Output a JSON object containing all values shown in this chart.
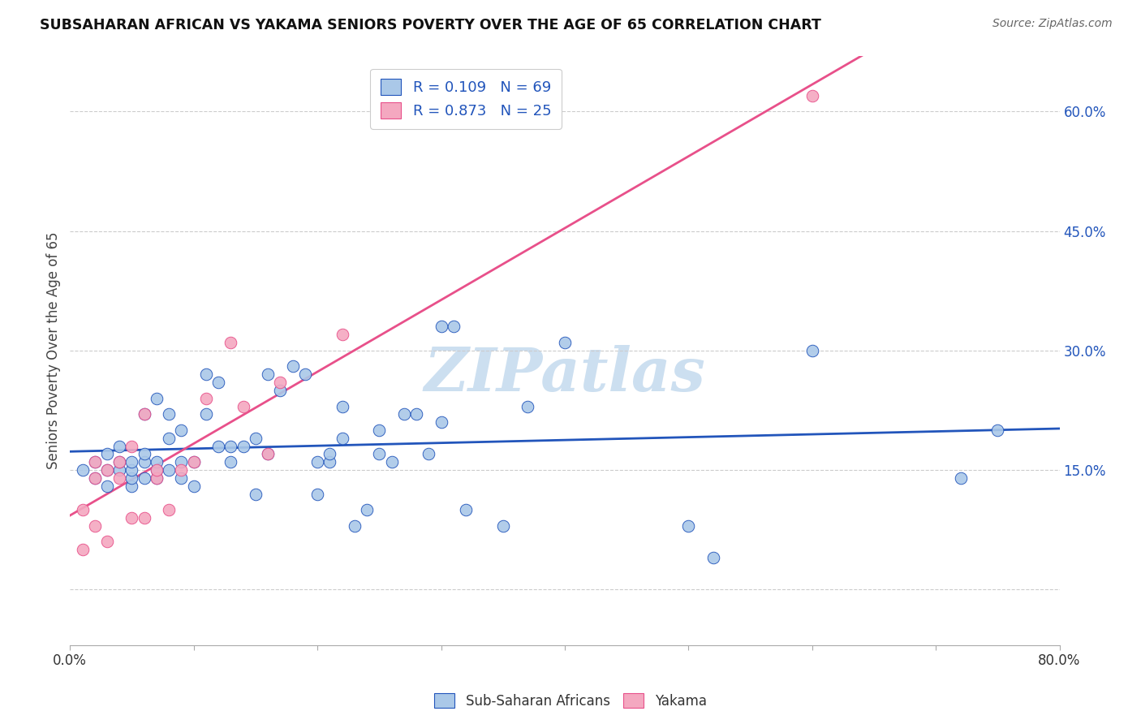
{
  "title": "SUBSAHARAN AFRICAN VS YAKAMA SENIORS POVERTY OVER THE AGE OF 65 CORRELATION CHART",
  "source": "Source: ZipAtlas.com",
  "ylabel": "Seniors Poverty Over the Age of 65",
  "xlim": [
    0.0,
    0.8
  ],
  "ylim": [
    -0.07,
    0.67
  ],
  "ytick_values": [
    0.0,
    0.15,
    0.3,
    0.45,
    0.6
  ],
  "ytick_labels": [
    "",
    "15.0%",
    "30.0%",
    "45.0%",
    "60.0%"
  ],
  "xtick_values": [
    0.0,
    0.1,
    0.2,
    0.3,
    0.4,
    0.5,
    0.6,
    0.7,
    0.8
  ],
  "title_color": "#111111",
  "source_color": "#666666",
  "grid_color": "#cccccc",
  "blue_scatter_color": "#aac8e8",
  "pink_scatter_color": "#f4a8c0",
  "blue_line_color": "#2255bb",
  "pink_line_color": "#e8508a",
  "tick_label_color": "#2255bb",
  "watermark_color": "#ccdff0",
  "R_blue": 0.109,
  "N_blue": 69,
  "R_pink": 0.873,
  "N_pink": 25,
  "blue_x": [
    0.01,
    0.02,
    0.02,
    0.03,
    0.03,
    0.03,
    0.04,
    0.04,
    0.04,
    0.05,
    0.05,
    0.05,
    0.05,
    0.06,
    0.06,
    0.06,
    0.06,
    0.07,
    0.07,
    0.07,
    0.07,
    0.08,
    0.08,
    0.08,
    0.09,
    0.09,
    0.09,
    0.1,
    0.1,
    0.11,
    0.11,
    0.12,
    0.12,
    0.13,
    0.13,
    0.14,
    0.15,
    0.15,
    0.16,
    0.16,
    0.17,
    0.18,
    0.19,
    0.2,
    0.2,
    0.21,
    0.21,
    0.22,
    0.22,
    0.23,
    0.24,
    0.25,
    0.25,
    0.26,
    0.27,
    0.28,
    0.29,
    0.3,
    0.3,
    0.31,
    0.32,
    0.35,
    0.37,
    0.4,
    0.5,
    0.52,
    0.6,
    0.72,
    0.75
  ],
  "blue_y": [
    0.15,
    0.14,
    0.16,
    0.13,
    0.15,
    0.17,
    0.15,
    0.16,
    0.18,
    0.13,
    0.14,
    0.15,
    0.16,
    0.14,
    0.16,
    0.17,
    0.22,
    0.14,
    0.15,
    0.16,
    0.24,
    0.15,
    0.19,
    0.22,
    0.14,
    0.16,
    0.2,
    0.13,
    0.16,
    0.22,
    0.27,
    0.18,
    0.26,
    0.16,
    0.18,
    0.18,
    0.12,
    0.19,
    0.17,
    0.27,
    0.25,
    0.28,
    0.27,
    0.12,
    0.16,
    0.16,
    0.17,
    0.19,
    0.23,
    0.08,
    0.1,
    0.17,
    0.2,
    0.16,
    0.22,
    0.22,
    0.17,
    0.21,
    0.33,
    0.33,
    0.1,
    0.08,
    0.23,
    0.31,
    0.08,
    0.04,
    0.3,
    0.14,
    0.2
  ],
  "pink_x": [
    0.01,
    0.01,
    0.02,
    0.02,
    0.02,
    0.03,
    0.03,
    0.04,
    0.04,
    0.05,
    0.05,
    0.06,
    0.06,
    0.07,
    0.07,
    0.08,
    0.09,
    0.1,
    0.11,
    0.13,
    0.14,
    0.16,
    0.17,
    0.22,
    0.6
  ],
  "pink_y": [
    0.05,
    0.1,
    0.08,
    0.14,
    0.16,
    0.06,
    0.15,
    0.14,
    0.16,
    0.09,
    0.18,
    0.09,
    0.22,
    0.14,
    0.15,
    0.1,
    0.15,
    0.16,
    0.24,
    0.31,
    0.23,
    0.17,
    0.26,
    0.32,
    0.62
  ],
  "legend_label_blue": "Sub-Saharan Africans",
  "legend_label_pink": "Yakama"
}
